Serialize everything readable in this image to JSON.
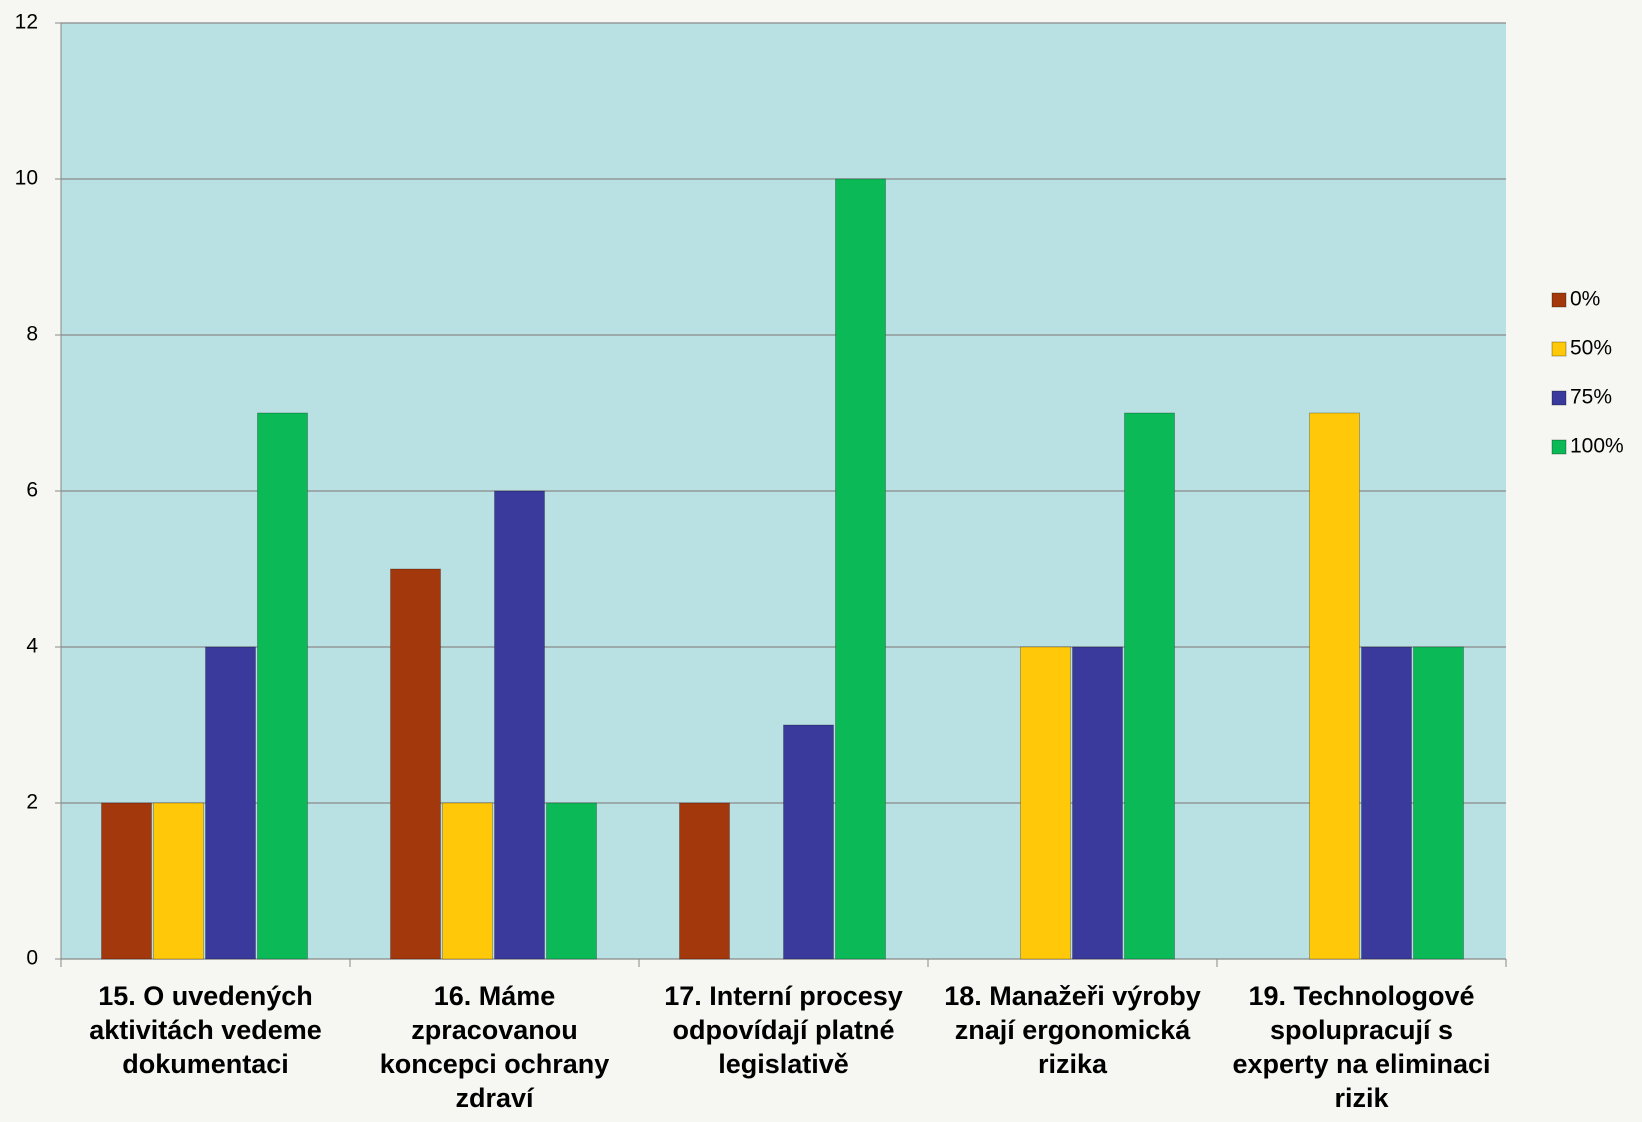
{
  "chart_data": {
    "type": "bar",
    "categories": [
      "15. O uvedených aktivitách vedeme dokumentaci",
      "16. Máme zpracovanou koncepci ochrany zdraví",
      "17. Interní procesy odpovídají platné legislativě",
      "18. Manažeři výroby znají ergonomická rizika",
      "19. Technologové spolupracují s experty na eliminaci rizik"
    ],
    "series": [
      {
        "name": "0%",
        "color": "#a3380c",
        "values": [
          2,
          5,
          2,
          0,
          0
        ]
      },
      {
        "name": "50%",
        "color": "#ffc90a",
        "values": [
          2,
          2,
          0,
          4,
          7
        ]
      },
      {
        "name": "75%",
        "color": "#3a3a9c",
        "values": [
          4,
          6,
          3,
          4,
          4
        ]
      },
      {
        "name": "100%",
        "color": "#0bb957",
        "values": [
          7,
          2,
          10,
          7,
          4
        ]
      }
    ],
    "ylim": [
      0,
      12
    ],
    "yticks": [
      0,
      2,
      4,
      6,
      8,
      10,
      12
    ],
    "grid": true,
    "legend": "right"
  }
}
